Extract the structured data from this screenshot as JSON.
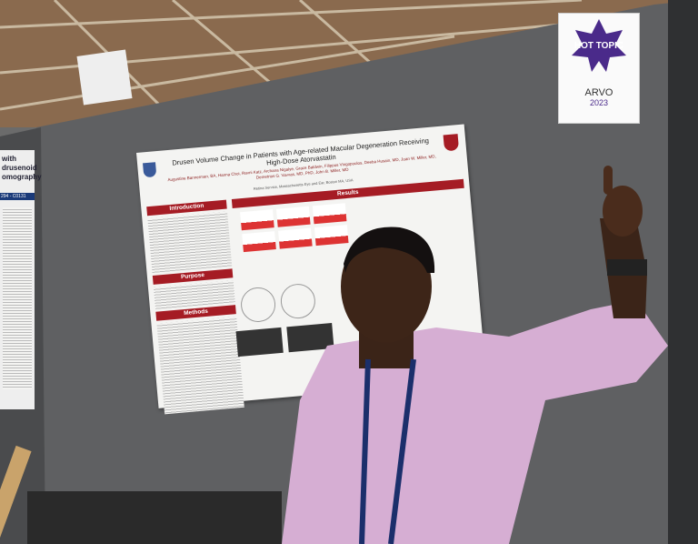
{
  "poster": {
    "title": "Drusen Volume Change in Patients with Age-related Macular Degeneration Receiving High-Dose Atorvastatin",
    "authors": "Augustine Bannerman, BA, Hanna Choi, Ravni Katz, Archana Nigalye, Grace Baldwin, Filippos Vingopoulos, Deeba Husain, MD, Joan W. Miller, MD, Demetrios G. Vavvas, MD, PhD, John B. Miller, MD",
    "affiliation": "Retina Service, Massachusetts Eye and Ear, Boston MA, USA",
    "sections": [
      "Introduction",
      "Purpose",
      "Methods",
      "Results"
    ]
  },
  "badge": {
    "label": "HOT TOPIC",
    "event": "ARVO",
    "year": "2023"
  },
  "side_poster": {
    "title_lines": [
      "with drusenoid",
      "omography"
    ],
    "board_number": "294 - C0131"
  }
}
